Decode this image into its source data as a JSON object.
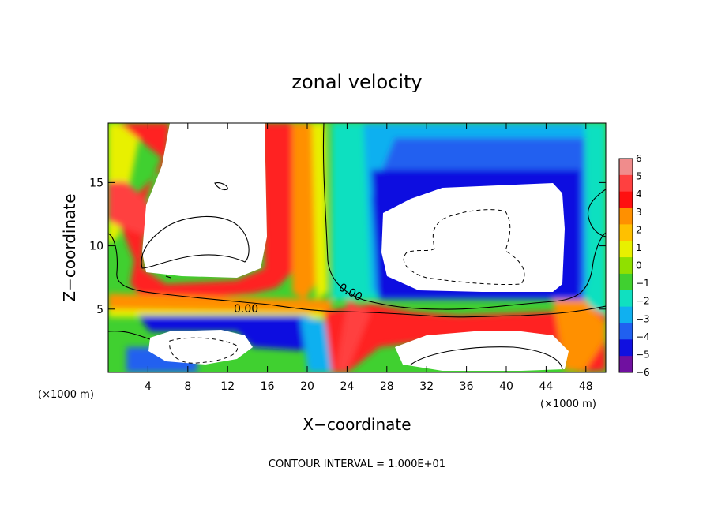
{
  "chart_data": {
    "type": "heatmap",
    "title": "zonal velocity",
    "xlabel": "X−coordinate",
    "ylabel": "Z−coordinate",
    "x_unit_label": "(×1000 m)",
    "y_unit_label": "(×1000 m)",
    "footer": "CONTOUR INTERVAL = 1.000E+01",
    "xlim": [
      0,
      50
    ],
    "ylim": [
      0,
      19.7
    ],
    "x_ticks": [
      4,
      8,
      12,
      16,
      20,
      24,
      28,
      32,
      36,
      40,
      44,
      48
    ],
    "y_ticks": [
      5,
      10,
      15
    ],
    "x_tick_labels": [
      "4",
      "8",
      "12",
      "16",
      "20",
      "24",
      "28",
      "32",
      "36",
      "40",
      "44",
      "48"
    ],
    "y_tick_labels": [
      "5",
      "10",
      "15"
    ],
    "colorbar": {
      "levels": [
        6,
        5,
        4,
        3,
        2,
        1,
        0,
        -1,
        -2,
        -3,
        -4,
        -5,
        -6
      ],
      "labels": [
        "6",
        "5",
        "4",
        "3",
        "2",
        "1",
        "0",
        "−1",
        "−2",
        "−3",
        "−4",
        "−5",
        "−6"
      ],
      "colors": [
        "#f08c8c",
        "#ff4040",
        "#ff1010",
        "#ff9000",
        "#ffc000",
        "#e8f000",
        "#90e000",
        "#40d030",
        "#10e0c0",
        "#10b0f0",
        "#2060f0",
        "#1010e0",
        "#7010a0"
      ]
    },
    "contour_labels": [
      {
        "text": "0.00",
        "x": 14.2,
        "y": 5.0
      },
      {
        "text": "0.00",
        "x": 24.0,
        "y": 6.7
      }
    ]
  }
}
